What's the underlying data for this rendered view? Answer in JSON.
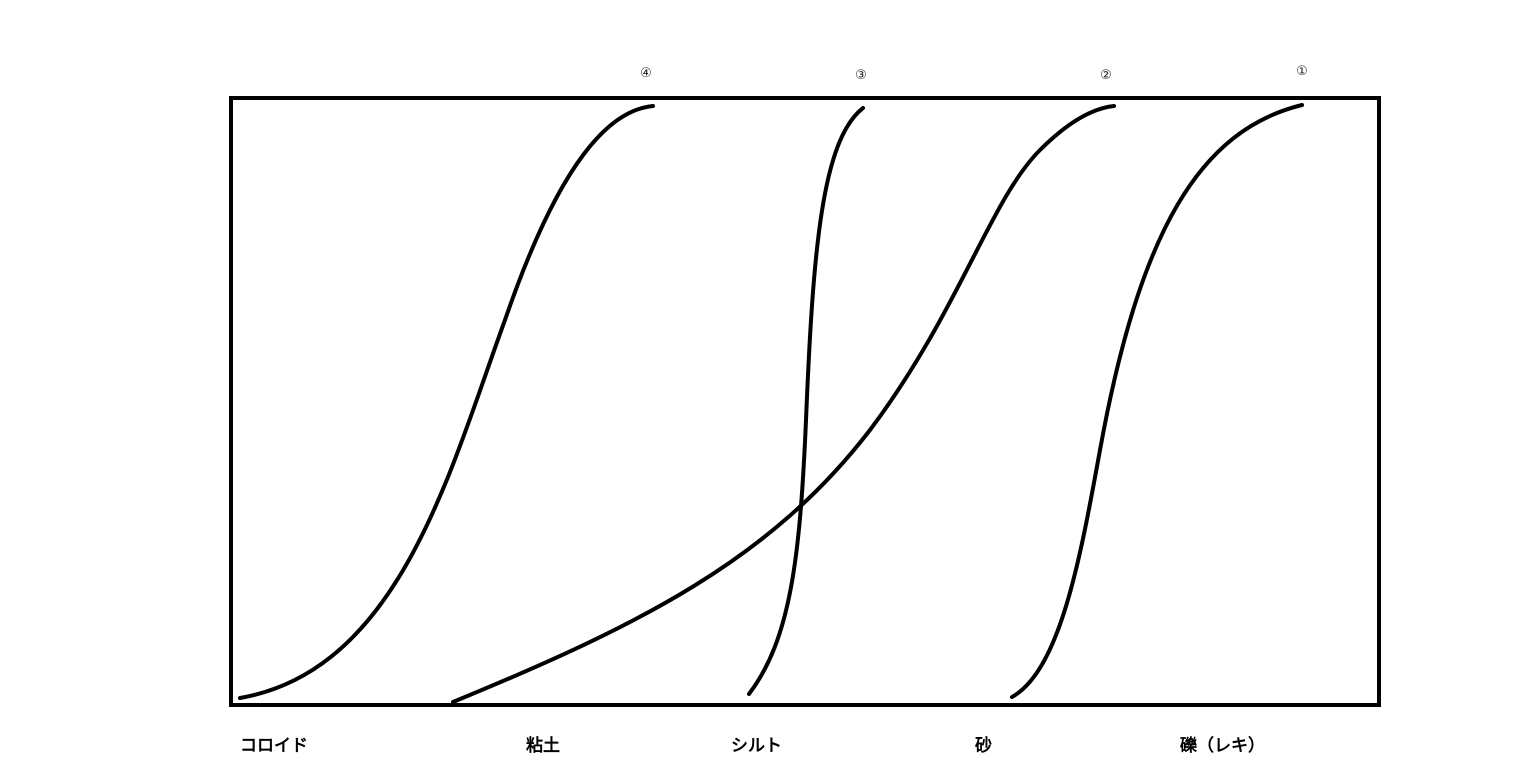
{
  "curves": [
    {
      "label": "①"
    },
    {
      "label": "②"
    },
    {
      "label": "③"
    },
    {
      "label": "④"
    }
  ],
  "categories": [
    "コロイド",
    "粘土",
    "シルト",
    "砂",
    "礫（レキ）"
  ],
  "colors": {
    "line": "#000000",
    "background": "#ffffff"
  }
}
